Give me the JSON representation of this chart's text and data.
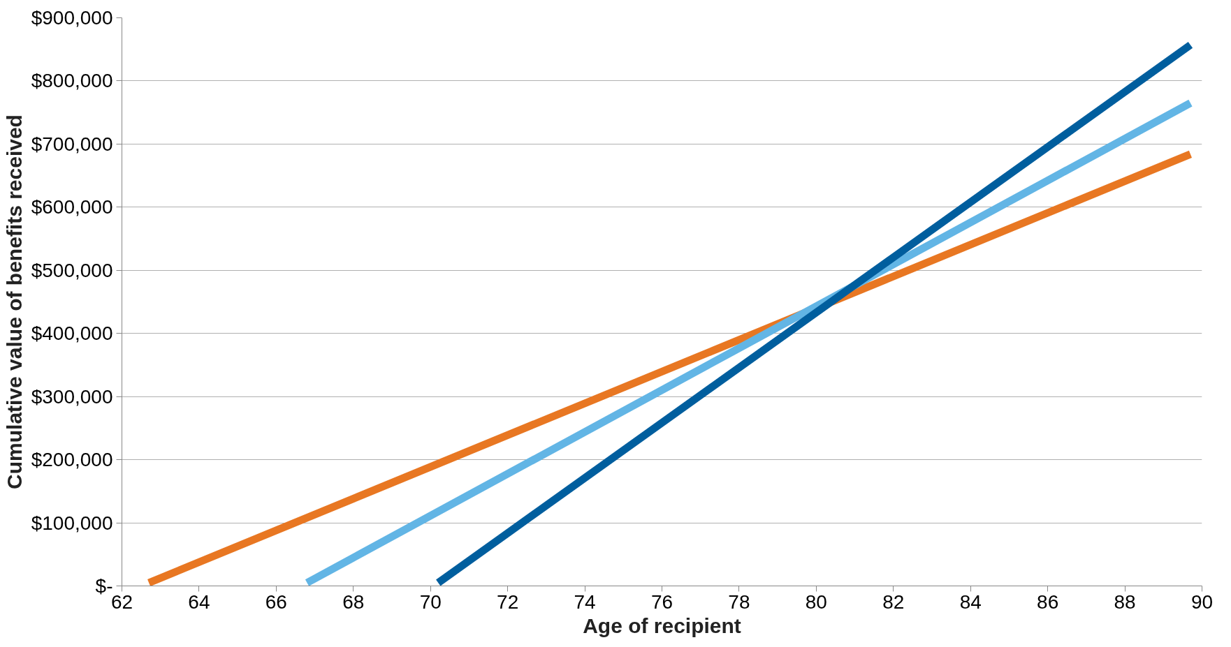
{
  "chart_data": {
    "type": "line",
    "xlabel": "Age of recipient",
    "ylabel": "Cumulative value of benefits received",
    "series": [
      {
        "color": "#e87722",
        "x": [
          62.7,
          89.7
        ],
        "values": [
          5000,
          684000
        ]
      },
      {
        "color": "#62b5e5",
        "x": [
          66.8,
          89.7
        ],
        "values": [
          5000,
          765000
        ]
      },
      {
        "color": "#005e9e",
        "x": [
          70.2,
          89.7
        ],
        "values": [
          5000,
          857000
        ]
      }
    ],
    "xlim": [
      62,
      90
    ],
    "xticks": [
      62,
      64,
      66,
      68,
      70,
      72,
      74,
      76,
      78,
      80,
      82,
      84,
      86,
      88,
      90
    ],
    "ylim": [
      0,
      900000
    ],
    "yticks": [
      {
        "value": 0,
        "label": "$-"
      },
      {
        "value": 100000,
        "label": "$100,000"
      },
      {
        "value": 200000,
        "label": "$200,000"
      },
      {
        "value": 300000,
        "label": "$300,000"
      },
      {
        "value": 400000,
        "label": "$400,000"
      },
      {
        "value": 500000,
        "label": "$500,000"
      },
      {
        "value": 600000,
        "label": "$600,000"
      },
      {
        "value": 700000,
        "label": "$700,000"
      },
      {
        "value": 800000,
        "label": "$800,000"
      },
      {
        "value": 900000,
        "label": "$900,000"
      }
    ],
    "grid": "y",
    "marker": "none",
    "line_style": "solid"
  }
}
